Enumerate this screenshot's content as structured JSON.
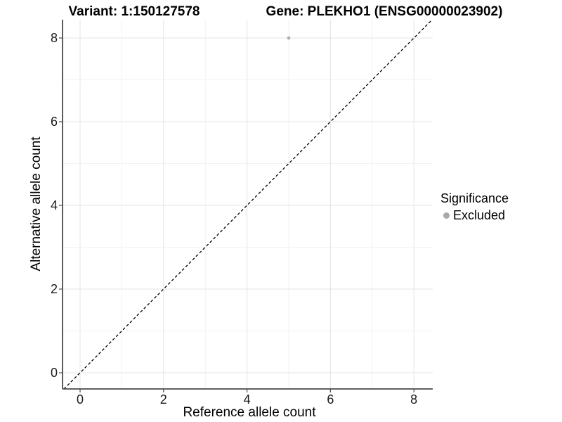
{
  "titles": {
    "left": "Variant: 1:150127578",
    "right": "Gene: PLEKHO1 (ENSG00000023902)"
  },
  "chart_data": {
    "type": "scatter",
    "title": "Variant: 1:150127578  /  Gene: PLEKHO1 (ENSG00000023902)",
    "xlabel": "Reference allele count",
    "ylabel": "Alternative allele count",
    "xlim": [
      -0.42,
      8.45
    ],
    "ylim": [
      -0.39,
      8.44
    ],
    "x_major_ticks": [
      0,
      2,
      4,
      6,
      8
    ],
    "y_major_ticks": [
      0,
      2,
      4,
      6,
      8
    ],
    "x_minor_ticks": [
      1,
      3,
      5,
      7
    ],
    "y_minor_ticks": [
      1,
      3,
      5,
      7
    ],
    "grid": "major+minor on white panel",
    "axis_lines": "left and bottom only",
    "points": [
      {
        "x": 5,
        "y": 8,
        "series": "Excluded",
        "color": "#b0b0b0"
      }
    ],
    "reference_line": {
      "kind": "identity y=x",
      "style": "dashed",
      "color": "#000000"
    },
    "legend": {
      "title": "Significance",
      "position": "right",
      "items": [
        {
          "label": "Excluded",
          "marker": "circle",
          "color": "#a9a9a9"
        }
      ]
    }
  },
  "colors": {
    "background": "#ffffff",
    "grid_major": "#e4e4e4",
    "grid_minor": "#f2f2f2",
    "axis_line": "#4a4a4a",
    "tick_text": "#1a1a1a",
    "point_gray": "#b0b0b0"
  }
}
